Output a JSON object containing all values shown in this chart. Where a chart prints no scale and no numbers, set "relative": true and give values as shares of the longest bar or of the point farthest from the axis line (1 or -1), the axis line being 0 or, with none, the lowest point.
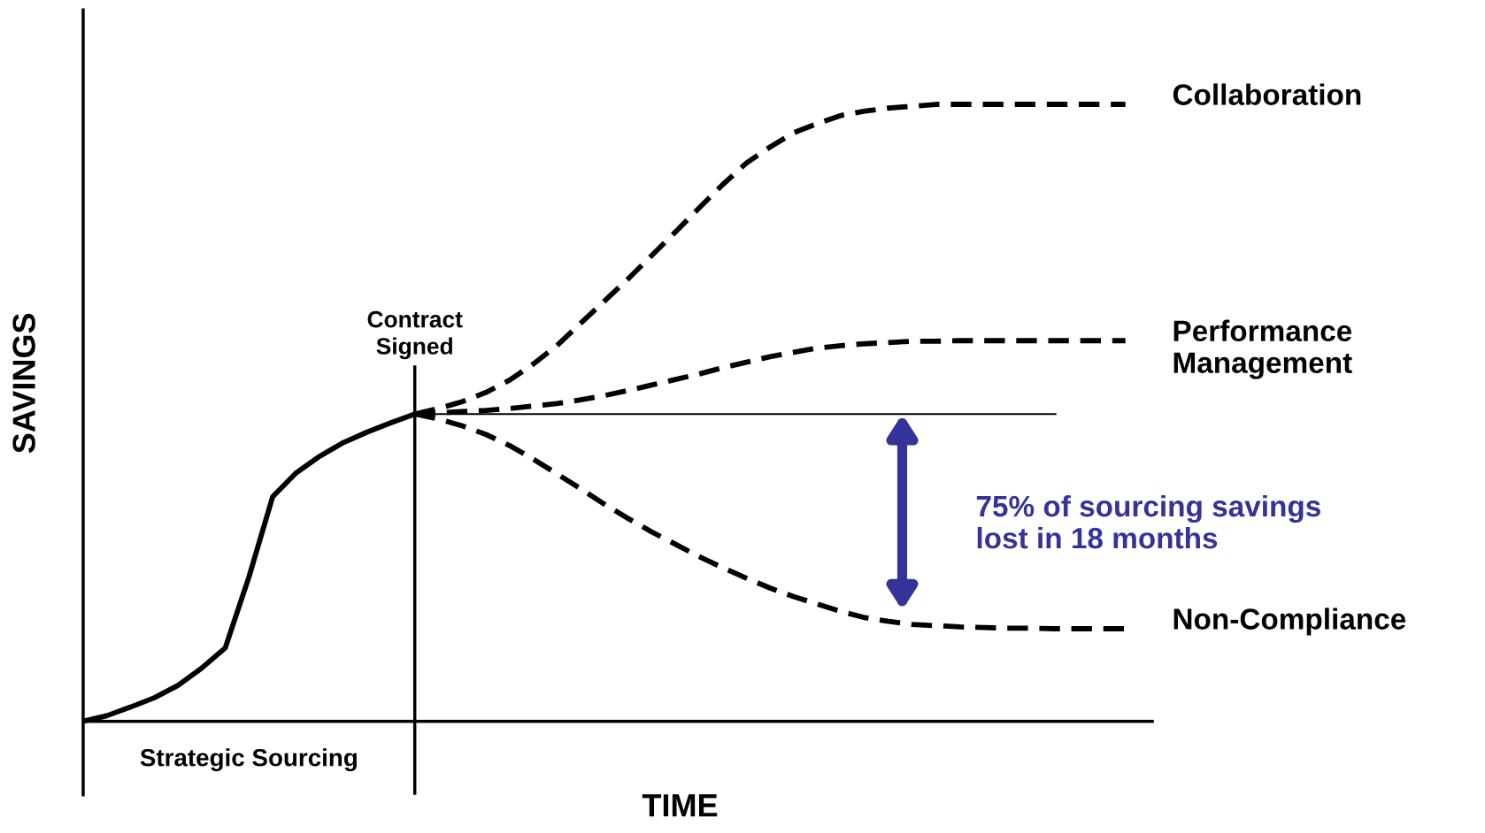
{
  "chart_data": {
    "type": "line",
    "relative": true,
    "xlabel": "TIME",
    "ylabel": "SAVINGS",
    "legend": false,
    "categories": [
      null,
      null,
      null,
      null,
      null,
      null,
      null,
      null,
      null,
      null,
      null,
      null,
      null,
      null,
      null,
      null,
      null,
      null,
      null,
      null,
      null,
      null,
      null,
      null,
      null,
      null,
      null,
      null,
      null,
      null,
      null,
      null,
      null,
      null,
      null,
      null,
      null,
      null,
      null,
      null,
      null,
      null,
      null,
      null,
      null
    ],
    "series": [
      {
        "color": "#000000",
        "line_style": "solid",
        "values": [
          0,
          0.009,
          0.023,
          0.038,
          0.058,
          0.086,
          0.119,
          0.234,
          0.364,
          0.403,
          0.43,
          0.452,
          0.469,
          0.484,
          0.498,
          null,
          null,
          null,
          null,
          null,
          null,
          null,
          null,
          null,
          null,
          null,
          null,
          null,
          null,
          null,
          null,
          null,
          null,
          null,
          null,
          null,
          null,
          null,
          null,
          null,
          null,
          null,
          null,
          null,
          null
        ]
      },
      {
        "name": "Collaboration",
        "color": "#000000",
        "line_style": "dashed",
        "values": [
          null,
          null,
          null,
          null,
          null,
          null,
          null,
          null,
          null,
          null,
          null,
          null,
          null,
          null,
          0.498,
          0.507,
          0.518,
          0.533,
          0.553,
          0.579,
          0.609,
          0.645,
          0.681,
          0.717,
          0.755,
          0.793,
          0.832,
          0.87,
          0.905,
          0.931,
          0.954,
          0.969,
          0.982,
          0.989,
          0.994,
          0.997,
          1,
          1,
          1,
          1,
          1,
          1,
          1,
          1,
          1
        ]
      },
      {
        "name": "Performance\nManagement",
        "color": "#000000",
        "line_style": "dashed",
        "values": [
          null,
          null,
          null,
          null,
          null,
          null,
          null,
          null,
          null,
          null,
          null,
          null,
          null,
          null,
          0.498,
          0.5,
          0.502,
          0.504,
          0.507,
          0.511,
          0.515,
          0.521,
          0.528,
          0.536,
          0.545,
          0.554,
          0.563,
          0.573,
          0.582,
          0.591,
          0.598,
          0.605,
          0.609,
          0.612,
          0.614,
          0.616,
          0.616,
          0.617,
          0.617,
          0.617,
          0.617,
          0.617,
          0.617,
          0.617,
          0.617
        ]
      },
      {
        "name": "Non-Compliance",
        "color": "#000000",
        "line_style": "dashed",
        "values": [
          null,
          null,
          null,
          null,
          null,
          null,
          null,
          null,
          null,
          null,
          null,
          null,
          null,
          null,
          0.498,
          0.49,
          0.479,
          0.465,
          0.447,
          0.425,
          0.401,
          0.377,
          0.352,
          0.329,
          0.307,
          0.287,
          0.267,
          0.249,
          0.232,
          0.216,
          0.202,
          0.19,
          0.178,
          0.168,
          0.162,
          0.157,
          0.155,
          0.153,
          0.152,
          0.151,
          0.151,
          0.15,
          0.15,
          0.15,
          0.15
        ]
      }
    ],
    "ref_lines": [
      {
        "axis": "y",
        "value": 0.498,
        "color": "#000000"
      }
    ],
    "annotations": [
      "Strategic Sourcing",
      "75% of sourcing savings\nlost in 18 months",
      "Contract\nSigned"
    ]
  }
}
